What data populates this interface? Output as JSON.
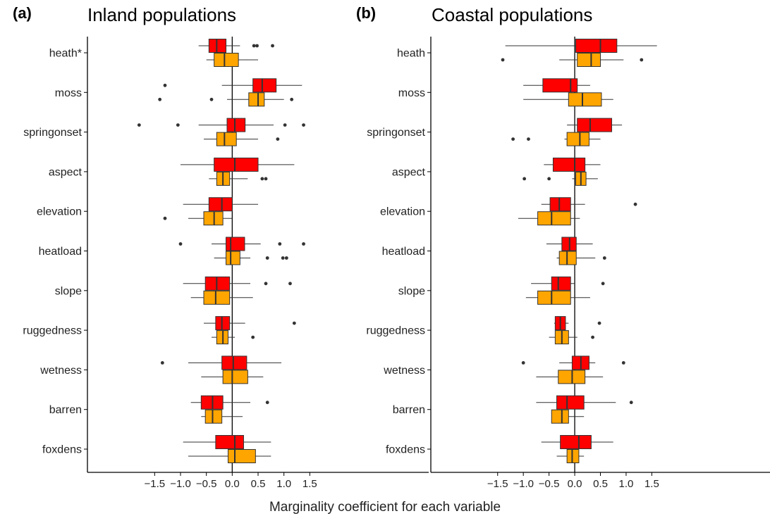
{
  "xlabel": "Marginality coefficient for each variable",
  "colors": {
    "series_a": "#ff0000",
    "series_b": "#ffa500",
    "median": "#333333",
    "whisker": "#333333",
    "outlier": "#333333",
    "axis": "#000000",
    "zero_line": "#000000"
  },
  "chart_data": [
    {
      "type": "boxplot",
      "panel_letter": "(a)",
      "title": "Inland populations",
      "xlabel": "Marginality coefficient for each variable",
      "xticks": [
        -1.5,
        -1.0,
        -0.5,
        0.0,
        0.5,
        1.0,
        1.5
      ],
      "xtick_labels": [
        "−1.5",
        "−1.0",
        "−0.5",
        "0.0",
        "0.5",
        "1.0",
        "1.5"
      ],
      "xlim": [
        -2.8,
        3.8
      ],
      "vline": 0,
      "grid": false,
      "categories": [
        "heath*",
        "moss",
        "springonset",
        "aspect",
        "elevation",
        "heatload",
        "slope",
        "ruggedness",
        "wetness",
        "barren",
        "foxdens"
      ],
      "series": [
        {
          "color": "#ff0000",
          "boxes": [
            {
              "whislo": -0.65,
              "q1": -0.45,
              "med": -0.3,
              "q3": -0.12,
              "whishi": 0.15,
              "fliers": [
                0.42,
                0.48,
                0.78
              ]
            },
            {
              "whislo": -0.2,
              "q1": 0.4,
              "med": 0.58,
              "q3": 0.85,
              "whishi": 1.35,
              "fliers": [
                -1.3
              ]
            },
            {
              "whislo": -0.65,
              "q1": -0.1,
              "med": 0.05,
              "q3": 0.25,
              "whishi": 0.8,
              "fliers": [
                -1.8,
                -1.05,
                1.02,
                1.38
              ]
            },
            {
              "whislo": -1.0,
              "q1": -0.35,
              "med": 0.05,
              "q3": 0.5,
              "whishi": 1.2,
              "fliers": []
            },
            {
              "whislo": -0.95,
              "q1": -0.45,
              "med": -0.2,
              "q3": 0.0,
              "whishi": 0.5,
              "fliers": []
            },
            {
              "whislo": -0.4,
              "q1": -0.12,
              "med": -0.03,
              "q3": 0.24,
              "whishi": 0.55,
              "fliers": [
                -1.0,
                0.92,
                1.38
              ]
            },
            {
              "whislo": -0.95,
              "q1": -0.52,
              "med": -0.3,
              "q3": -0.05,
              "whishi": 0.35,
              "fliers": [
                0.65,
                1.12
              ]
            },
            {
              "whislo": -0.55,
              "q1": -0.32,
              "med": -0.2,
              "q3": -0.05,
              "whishi": 0.25,
              "fliers": [
                1.2
              ]
            },
            {
              "whislo": -0.85,
              "q1": -0.2,
              "med": 0.02,
              "q3": 0.28,
              "whishi": 0.95,
              "fliers": [
                -1.35
              ]
            },
            {
              "whislo": -0.8,
              "q1": -0.6,
              "med": -0.38,
              "q3": -0.18,
              "whishi": 0.35,
              "fliers": [
                0.68
              ]
            },
            {
              "whislo": -0.95,
              "q1": -0.32,
              "med": 0.05,
              "q3": 0.22,
              "whishi": 0.75,
              "fliers": []
            }
          ]
        },
        {
          "color": "#ffa500",
          "boxes": [
            {
              "whislo": -0.5,
              "q1": -0.35,
              "med": -0.15,
              "q3": 0.12,
              "whishi": 0.5,
              "fliers": []
            },
            {
              "whislo": -0.1,
              "q1": 0.32,
              "med": 0.5,
              "q3": 0.62,
              "whishi": 1.0,
              "fliers": [
                -1.4,
                -0.4,
                1.15
              ]
            },
            {
              "whislo": -0.55,
              "q1": -0.3,
              "med": -0.15,
              "q3": 0.08,
              "whishi": 0.5,
              "fliers": [
                0.88
              ]
            },
            {
              "whislo": -0.45,
              "q1": -0.3,
              "med": -0.18,
              "q3": -0.05,
              "whishi": 0.3,
              "fliers": [
                0.58,
                0.65
              ]
            },
            {
              "whislo": -0.85,
              "q1": -0.55,
              "med": -0.35,
              "q3": -0.18,
              "whishi": 0.0,
              "fliers": [
                -1.3
              ]
            },
            {
              "whislo": -0.35,
              "q1": -0.12,
              "med": -0.03,
              "q3": 0.15,
              "whishi": 0.35,
              "fliers": [
                0.68,
                0.98,
                1.05
              ]
            },
            {
              "whislo": -0.8,
              "q1": -0.55,
              "med": -0.32,
              "q3": -0.05,
              "whishi": 0.4,
              "fliers": []
            },
            {
              "whislo": -0.4,
              "q1": -0.3,
              "med": -0.18,
              "q3": -0.08,
              "whishi": 0.05,
              "fliers": [
                0.4
              ]
            },
            {
              "whislo": -0.6,
              "q1": -0.18,
              "med": 0.0,
              "q3": 0.3,
              "whishi": 0.6,
              "fliers": []
            },
            {
              "whislo": -0.6,
              "q1": -0.52,
              "med": -0.38,
              "q3": -0.2,
              "whishi": 0.2,
              "fliers": []
            },
            {
              "whislo": -0.85,
              "q1": -0.08,
              "med": 0.05,
              "q3": 0.45,
              "whishi": 0.75,
              "fliers": []
            }
          ]
        }
      ]
    },
    {
      "type": "boxplot",
      "panel_letter": "(b)",
      "title": "Coastal populations",
      "xlabel": "Marginality coefficient for each variable",
      "xticks": [
        -1.5,
        -1.0,
        -0.5,
        0.0,
        0.5,
        1.0,
        1.5
      ],
      "xtick_labels": [
        "−1.5",
        "−1.0",
        "−0.5",
        "0.0",
        "0.5",
        "1.0",
        "1.5"
      ],
      "xlim": [
        -2.8,
        3.8
      ],
      "vline": 0,
      "grid": false,
      "categories": [
        "heath",
        "moss",
        "springonset",
        "aspect",
        "elevation",
        "heatload",
        "slope",
        "ruggedness",
        "wetness",
        "barren",
        "foxdens"
      ],
      "series": [
        {
          "color": "#ff0000",
          "boxes": [
            {
              "whislo": -1.35,
              "q1": 0.02,
              "med": 0.5,
              "q3": 0.82,
              "whishi": 1.6,
              "fliers": []
            },
            {
              "whislo": -1.0,
              "q1": -0.62,
              "med": -0.08,
              "q3": 0.05,
              "whishi": 0.3,
              "fliers": []
            },
            {
              "whislo": -0.15,
              "q1": 0.05,
              "med": 0.3,
              "q3": 0.72,
              "whishi": 0.92,
              "fliers": []
            },
            {
              "whislo": -0.6,
              "q1": -0.42,
              "med": 0.0,
              "q3": 0.2,
              "whishi": 0.5,
              "fliers": []
            },
            {
              "whislo": -0.65,
              "q1": -0.48,
              "med": -0.3,
              "q3": -0.08,
              "whishi": 0.2,
              "fliers": [
                1.18
              ]
            },
            {
              "whislo": -0.55,
              "q1": -0.25,
              "med": -0.1,
              "q3": 0.03,
              "whishi": 0.35,
              "fliers": []
            },
            {
              "whislo": -0.85,
              "q1": -0.45,
              "med": -0.32,
              "q3": -0.08,
              "whishi": 0.0,
              "fliers": [
                0.55
              ]
            },
            {
              "whislo": -0.4,
              "q1": -0.38,
              "med": -0.28,
              "q3": -0.18,
              "whishi": -0.12,
              "fliers": [
                0.48
              ]
            },
            {
              "whislo": -0.3,
              "q1": -0.05,
              "med": 0.12,
              "q3": 0.28,
              "whishi": 0.4,
              "fliers": [
                -1.0,
                0.95
              ]
            },
            {
              "whislo": -0.75,
              "q1": -0.35,
              "med": -0.15,
              "q3": 0.18,
              "whishi": 0.8,
              "fliers": [
                1.1
              ]
            },
            {
              "whislo": -0.65,
              "q1": -0.28,
              "med": 0.08,
              "q3": 0.32,
              "whishi": 0.75,
              "fliers": []
            }
          ]
        },
        {
          "color": "#ffa500",
          "boxes": [
            {
              "whislo": -0.3,
              "q1": 0.05,
              "med": 0.32,
              "q3": 0.5,
              "whishi": 0.95,
              "fliers": [
                -1.4,
                1.3
              ]
            },
            {
              "whislo": -1.0,
              "q1": -0.12,
              "med": 0.15,
              "q3": 0.52,
              "whishi": 0.75,
              "fliers": []
            },
            {
              "whislo": -0.2,
              "q1": -0.15,
              "med": 0.1,
              "q3": 0.28,
              "whishi": 0.5,
              "fliers": [
                -1.2,
                -0.9
              ]
            },
            {
              "whislo": -0.05,
              "q1": 0.02,
              "med": 0.12,
              "q3": 0.22,
              "whishi": 0.45,
              "fliers": [
                -0.98,
                -0.5
              ]
            },
            {
              "whislo": -1.1,
              "q1": -0.72,
              "med": -0.45,
              "q3": -0.08,
              "whishi": 0.1,
              "fliers": []
            },
            {
              "whislo": -0.35,
              "q1": -0.3,
              "med": -0.15,
              "q3": 0.03,
              "whishi": 0.4,
              "fliers": [
                0.58
              ]
            },
            {
              "whislo": -0.95,
              "q1": -0.72,
              "med": -0.45,
              "q3": -0.08,
              "whishi": 0.3,
              "fliers": []
            },
            {
              "whislo": -0.5,
              "q1": -0.38,
              "med": -0.25,
              "q3": -0.12,
              "whishi": 0.05,
              "fliers": [
                0.35
              ]
            },
            {
              "whislo": -0.75,
              "q1": -0.32,
              "med": -0.05,
              "q3": 0.2,
              "whishi": 0.55,
              "fliers": []
            },
            {
              "whislo": -0.45,
              "q1": -0.45,
              "med": -0.25,
              "q3": -0.12,
              "whishi": 0.18,
              "fliers": []
            },
            {
              "whislo": -0.35,
              "q1": -0.15,
              "med": -0.05,
              "q3": 0.08,
              "whishi": 0.18,
              "fliers": []
            }
          ]
        }
      ]
    }
  ]
}
